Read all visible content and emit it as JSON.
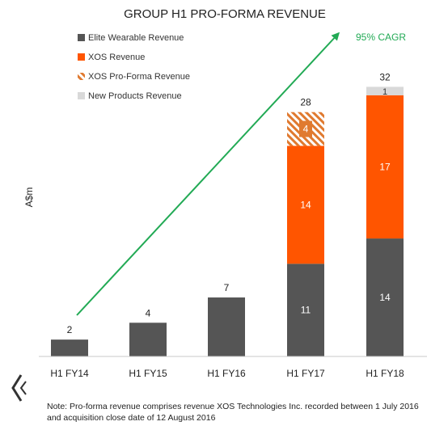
{
  "chart_data": {
    "type": "bar",
    "stacked": true,
    "title": "GROUP H1 PRO-FORMA REVENUE",
    "ylabel": "A$m",
    "xlabel": "",
    "ylim": [
      0,
      33
    ],
    "grid": false,
    "legend_position": "top-left",
    "categories": [
      "H1 FY14",
      "H1 FY15",
      "H1 FY16",
      "H1 FY17",
      "H1 FY18"
    ],
    "series": [
      {
        "name": "Elite Wearable Revenue",
        "color": "#555555",
        "pattern": "solid",
        "values": [
          2,
          4,
          7,
          11,
          14
        ]
      },
      {
        "name": "XOS Revenue",
        "color": "#ff5500",
        "pattern": "solid",
        "values": [
          0,
          0,
          0,
          14,
          17
        ]
      },
      {
        "name": "XOS Pro-Forma Revenue",
        "color": "#e07a30",
        "pattern": "hatched",
        "values": [
          0,
          0,
          0,
          4,
          0
        ]
      },
      {
        "name": "New Products Revenue",
        "color": "#d9d9d9",
        "pattern": "solid",
        "values": [
          0,
          0,
          0,
          0,
          1
        ]
      }
    ],
    "segment_labels_shown_for_single_series_bars": false,
    "totals": [
      "2",
      "4",
      "7",
      "28",
      "32"
    ],
    "annotations": [
      {
        "text": "95% CAGR",
        "color": "#22aa55",
        "type": "growth-arrow",
        "from_category": "H1 FY14",
        "to_category": "H1 FY18"
      }
    ]
  },
  "footnote": {
    "line1": "Note: Pro-forma revenue comprises revenue XOS Technologies Inc. recorded between 1 July 2016",
    "line2": "and acquisition close date of 12 August 2016"
  },
  "logo": {
    "icon": "company-logo-chevron"
  }
}
